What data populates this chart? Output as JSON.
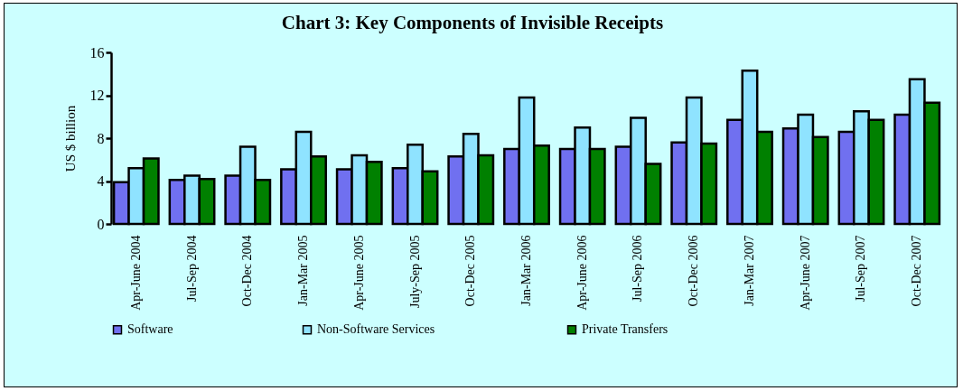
{
  "chart_data": {
    "type": "bar",
    "title": "Chart 3: Key Components of Invisible  Receipts",
    "ylabel": "US $ billion",
    "categories": [
      "Apr-June 2004",
      "Jul-Sep 2004",
      "Oct-Dec 2004",
      "Jan-Mar 2005",
      "Apr-June 2005",
      "July-Sep 2005",
      "Oct-Dec 2005",
      "Jan-Mar 2006",
      "Apr-June 2006",
      "Jul-Sep 2006",
      "Oct-Dec 2006",
      "Jan-Mar 2007",
      "Apr-June 2007",
      "Jul-Sep 2007",
      "Oct-Dec  2007"
    ],
    "series": [
      {
        "name": "Software",
        "color": "#7070f0",
        "values": [
          3.9,
          4.1,
          4.5,
          5.1,
          5.1,
          5.2,
          6.3,
          7.0,
          7.0,
          7.2,
          7.6,
          9.7,
          8.9,
          8.6,
          10.2
        ]
      },
      {
        "name": "Non-Software  Services",
        "color": "#8fe3ff",
        "values": [
          5.2,
          4.5,
          7.2,
          8.6,
          6.4,
          7.4,
          8.4,
          11.8,
          9.0,
          9.9,
          11.8,
          14.3,
          10.2,
          10.5,
          13.5
        ]
      },
      {
        "name": "Private Transfers",
        "color": "#008000",
        "values": [
          6.1,
          4.2,
          4.1,
          6.3,
          5.8,
          4.9,
          6.4,
          7.3,
          7.0,
          5.6,
          7.5,
          8.6,
          8.1,
          9.7,
          11.3
        ]
      }
    ],
    "ylim": [
      0,
      16
    ],
    "yticks": [
      0,
      4,
      8,
      12,
      16
    ],
    "grid": false,
    "legend": "bottom"
  }
}
